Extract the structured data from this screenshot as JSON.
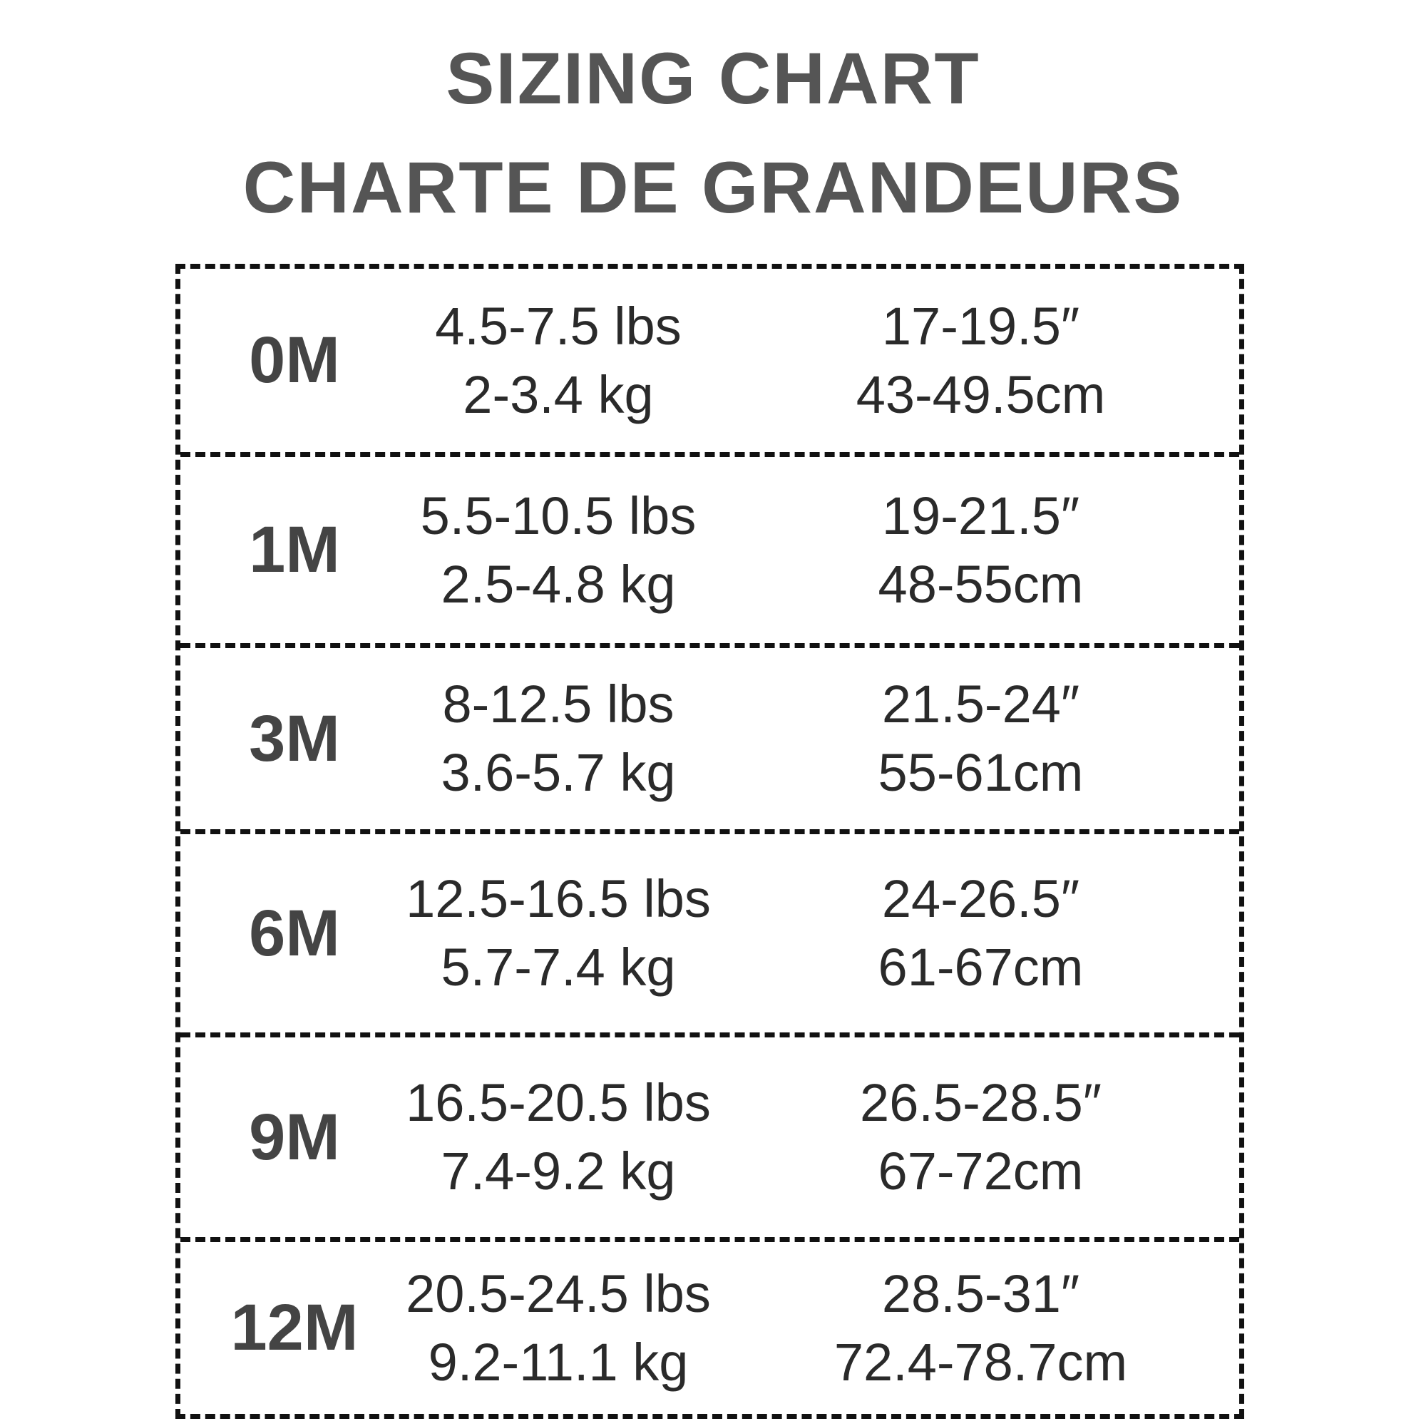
{
  "title_en": "SIZING CHART",
  "title_fr": "CHARTE DE GRANDEURS",
  "rows": [
    {
      "size": "0M",
      "lbs": "4.5-7.5 lbs",
      "kg": "2-3.4 kg",
      "in": "17-19.5″",
      "cm": "43-49.5cm"
    },
    {
      "size": "1M",
      "lbs": "5.5-10.5 lbs",
      "kg": "2.5-4.8 kg",
      "in": "19-21.5″",
      "cm": "48-55cm"
    },
    {
      "size": "3M",
      "lbs": "8-12.5 lbs",
      "kg": "3.6-5.7 kg",
      "in": "21.5-24″",
      "cm": "55-61cm"
    },
    {
      "size": "6M",
      "lbs": "12.5-16.5 lbs",
      "kg": "5.7-7.4 kg",
      "in": "24-26.5″",
      "cm": "61-67cm"
    },
    {
      "size": "9M",
      "lbs": "16.5-20.5 lbs",
      "kg": "7.4-9.2 kg",
      "in": "26.5-28.5″",
      "cm": "67-72cm"
    },
    {
      "size": "12M",
      "lbs": "20.5-24.5 lbs",
      "kg": "9.2-11.1 kg",
      "in": "28.5-31″",
      "cm": "72.4-78.7cm"
    }
  ]
}
